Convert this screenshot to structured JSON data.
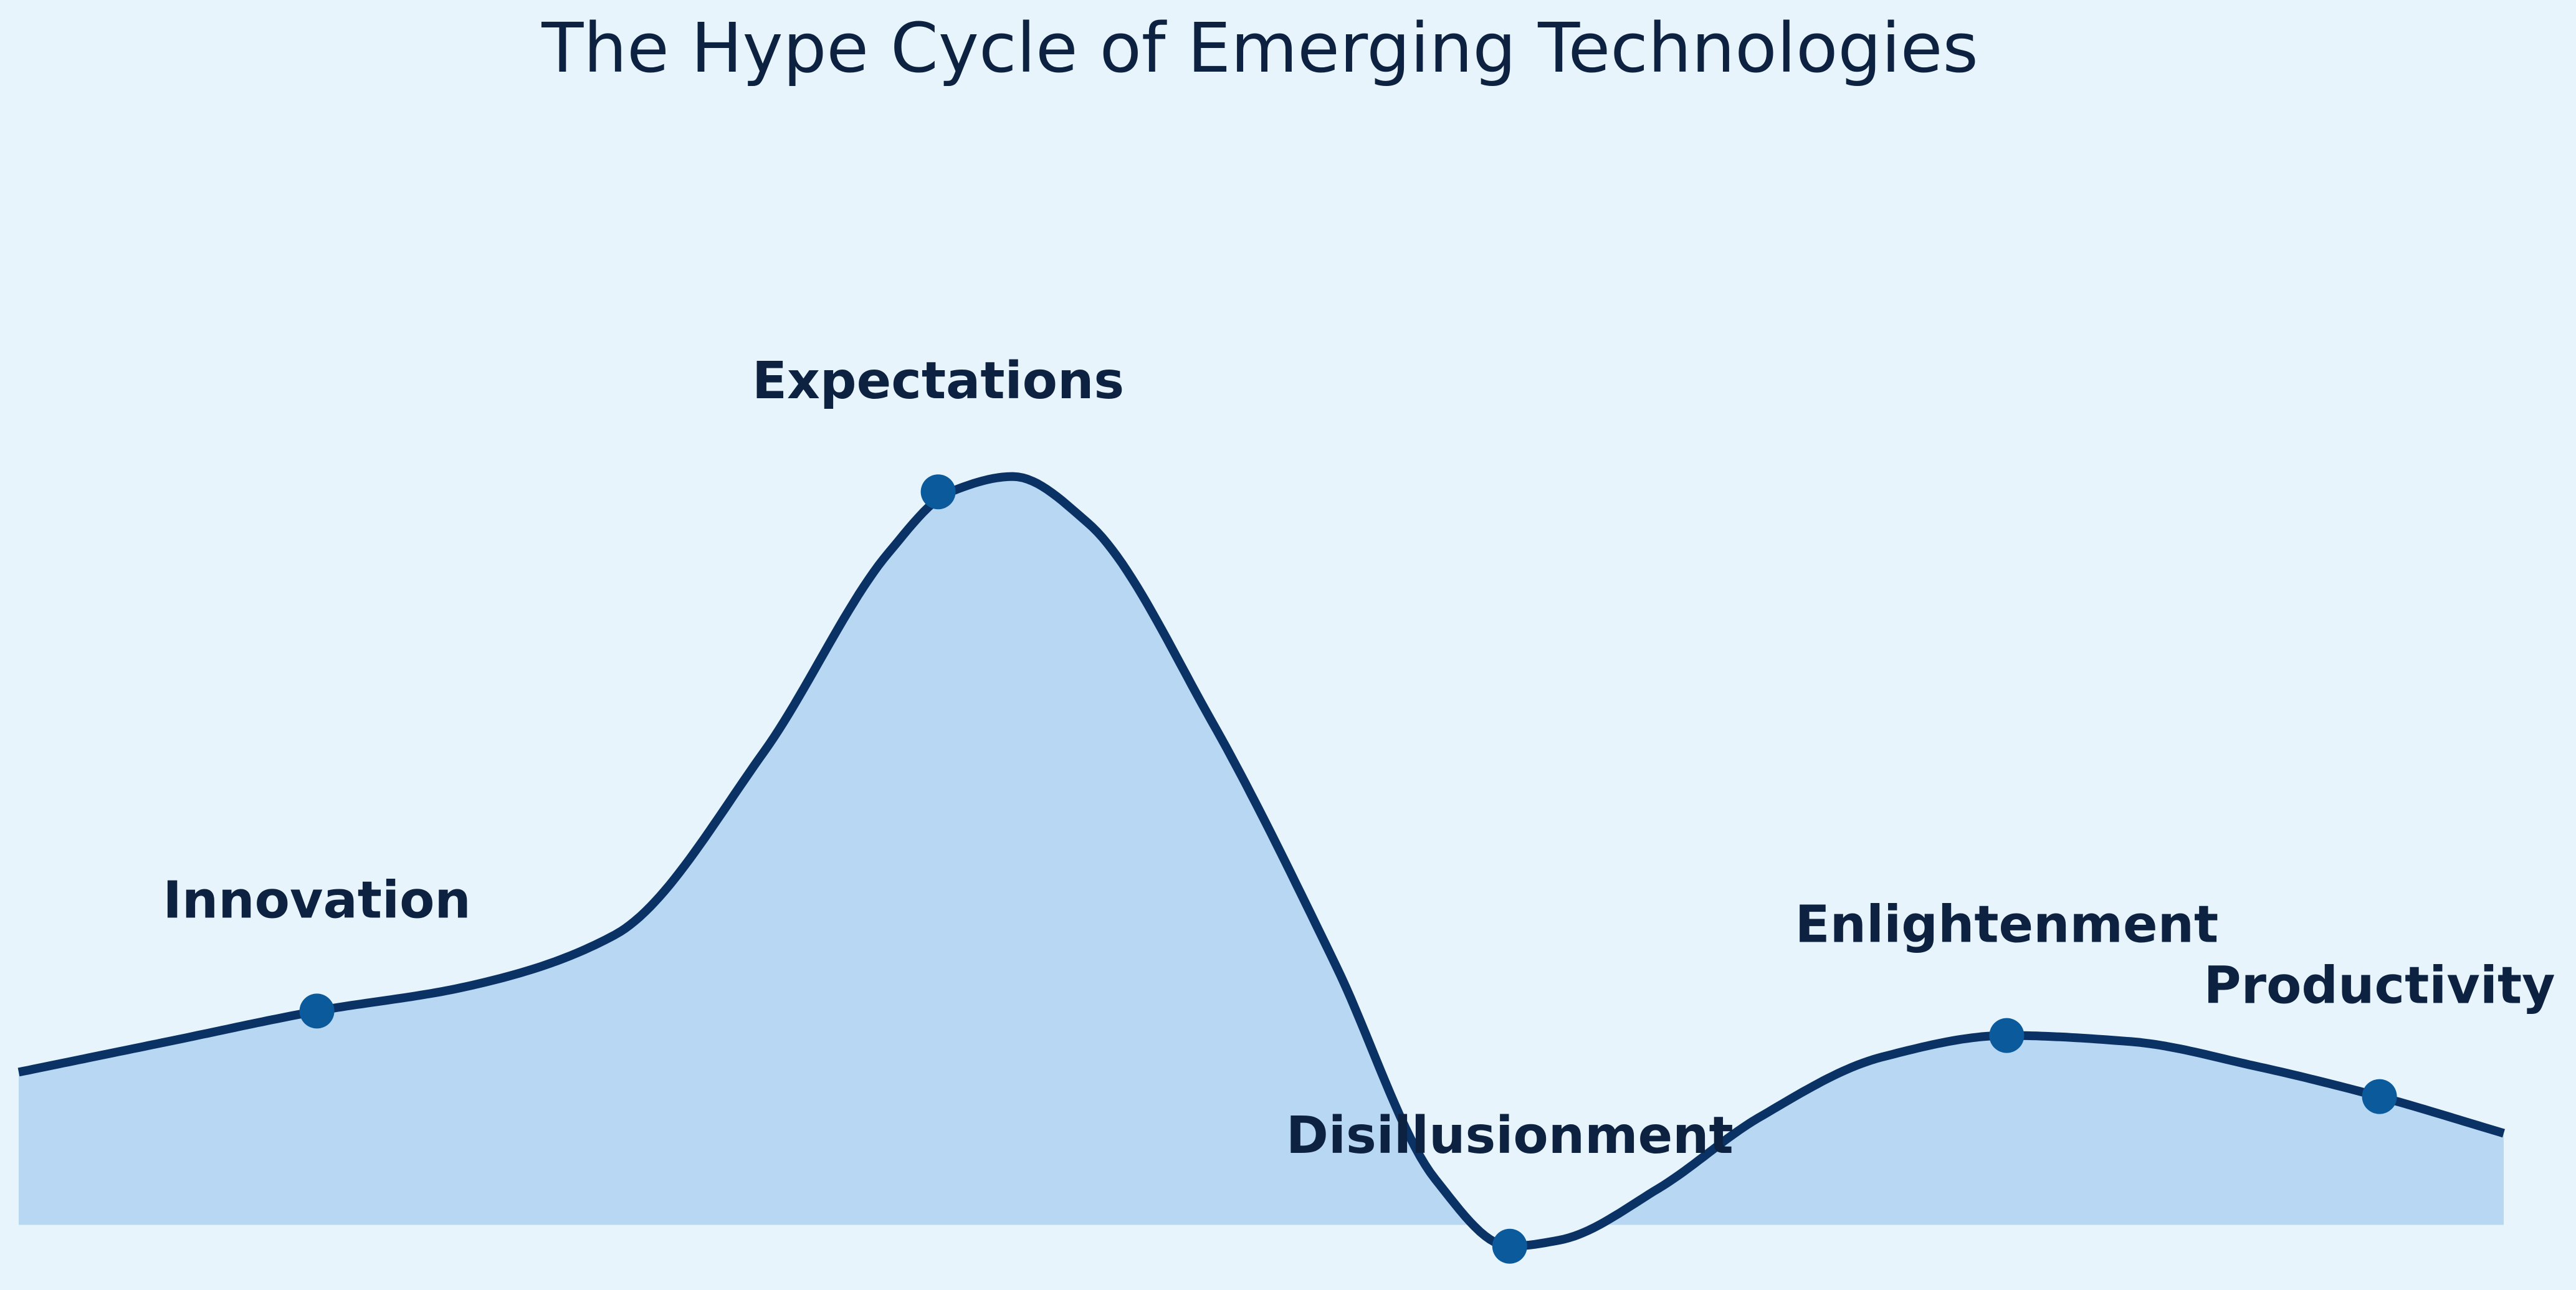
{
  "chart_data": {
    "type": "line",
    "title": "The Hype Cycle of Emerging Technologies",
    "xlabel": "",
    "ylabel": "",
    "grid": false,
    "legend": "none",
    "xlim": [
      0,
      10
    ],
    "ylim": [
      -0.55,
      3.0
    ],
    "baseline": -0.5,
    "curve": {
      "x": [
        0,
        0.6,
        1.2,
        1.8,
        2.4,
        3.0,
        3.5,
        3.75,
        4.0,
        4.3,
        4.8,
        5.3,
        5.7,
        6.0,
        6.2,
        6.6,
        7.0,
        7.5,
        8.0,
        8.5,
        9.0,
        9.5,
        10.0
      ],
      "y": [
        0.0,
        0.1,
        0.2,
        0.28,
        0.45,
        1.05,
        1.7,
        1.9,
        1.95,
        1.8,
        1.15,
        0.35,
        -0.35,
        -0.57,
        -0.55,
        -0.38,
        -0.15,
        0.05,
        0.12,
        0.1,
        0.02,
        -0.08,
        -0.2
      ]
    },
    "points": [
      {
        "label": "Innovation",
        "x": 1.2,
        "y": 0.2
      },
      {
        "label": "Expectations",
        "x": 3.7,
        "y": 1.9
      },
      {
        "label": "Disillusionment",
        "x": 6.0,
        "y": -0.57
      },
      {
        "label": "Enlightenment",
        "x": 8.0,
        "y": 0.12
      },
      {
        "label": "Productivity",
        "x": 9.5,
        "y": -0.08
      }
    ],
    "colors": {
      "line": "#0a3265",
      "fill": "#b8d7f2",
      "marker": "#0a5a9c",
      "text": "#0d2140",
      "background": "#e8f4fb"
    }
  }
}
